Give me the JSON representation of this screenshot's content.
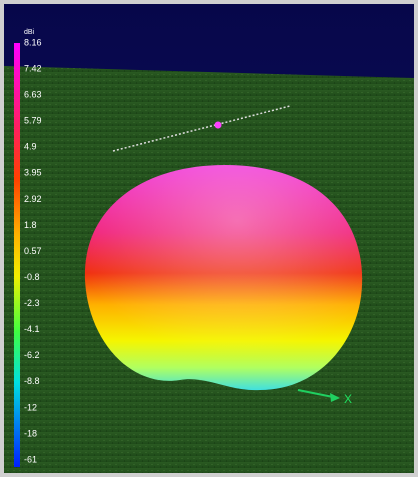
{
  "colorbar": {
    "unit": "dBi",
    "labels": [
      "8.16",
      "7.42",
      "6.63",
      "5.79",
      "4.9",
      "3.95",
      "2.92",
      "1.8",
      "0.57",
      "-0.8",
      "-2.3",
      "-4.1",
      "-6.2",
      "-8.8",
      "-12",
      "-18",
      "-61"
    ]
  },
  "axis_label": "X"
}
